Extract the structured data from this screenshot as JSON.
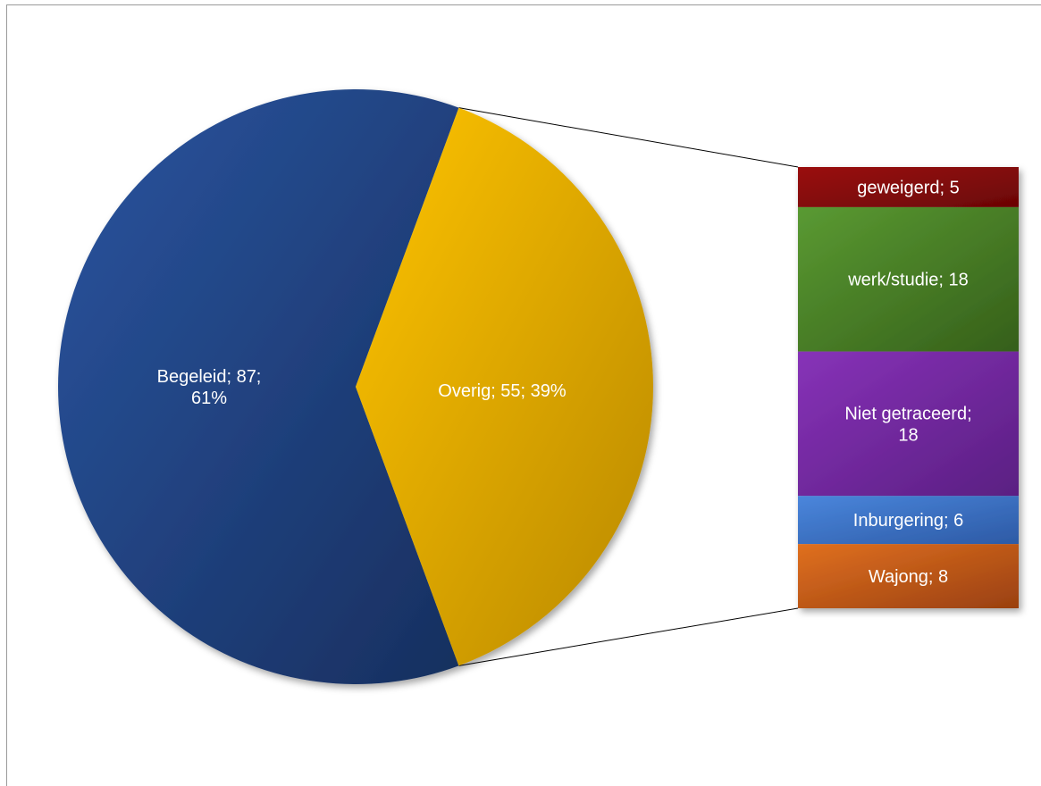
{
  "chart_data": {
    "type": "pie",
    "title": "",
    "series": [
      {
        "name": "",
        "slices": [
          {
            "label": "Begeleid",
            "value": 87,
            "percent": 61,
            "data_label": [
              "Begeleid; 87;",
              "61%"
            ],
            "color": "#1f4788"
          },
          {
            "label": "Overig",
            "value": 55,
            "percent": 39,
            "data_label": [
              "Overig; 55; 39%"
            ],
            "color": "#f0b400"
          }
        ]
      },
      {
        "name": "",
        "breakdown_of": "Overig",
        "segments": [
          {
            "label": "geweigerd",
            "value": 5,
            "data_label": [
              "geweigerd; 5"
            ],
            "color": "#8b0a0a"
          },
          {
            "label": "werk/studie",
            "value": 18,
            "data_label": [
              "werk/studie; 18"
            ],
            "color": "#4f8a2a"
          },
          {
            "label": "Niet getraceerd",
            "value": 18,
            "data_label": [
              "Niet getraceerd;",
              "18"
            ],
            "color": "#7a2da8"
          },
          {
            "label": "Inburgering",
            "value": 6,
            "data_label": [
              "Inburgering;  6"
            ],
            "color": "#3e74c9"
          },
          {
            "label": "Wajong",
            "value": 8,
            "data_label": [
              "Wajong; 8"
            ],
            "color": "#d2691e"
          }
        ]
      }
    ],
    "legend": "none",
    "grid": false
  }
}
